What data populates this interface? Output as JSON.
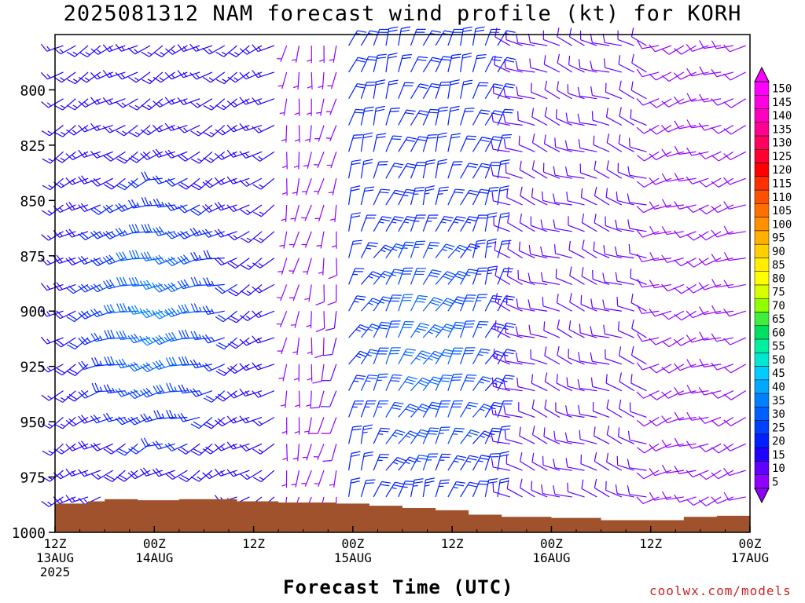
{
  "chart_data": {
    "type": "wind-barb-profile",
    "title": "2025081312 NAM forecast wind profile (kt) for KORH",
    "xlabel": "Forecast Time (UTC)",
    "credit": "coolwx.com/models",
    "y_axis": {
      "ticks": [
        "800",
        "825",
        "850",
        "875",
        "900",
        "925",
        "950",
        "975",
        "1000"
      ],
      "range_hpa": [
        775,
        1000
      ],
      "inverted": true
    },
    "x_axis": {
      "range_hours": [
        0,
        84
      ],
      "ticks": [
        {
          "h": 0,
          "line1": "12Z",
          "line2": "13AUG",
          "line3": "2025"
        },
        {
          "h": 12,
          "line1": "00Z",
          "line2": "14AUG",
          "line3": ""
        },
        {
          "h": 24,
          "line1": "12Z",
          "line2": "",
          "line3": ""
        },
        {
          "h": 36,
          "line1": "00Z",
          "line2": "15AUG",
          "line3": ""
        },
        {
          "h": 48,
          "line1": "12Z",
          "line2": "",
          "line3": ""
        },
        {
          "h": 60,
          "line1": "00Z",
          "line2": "16AUG",
          "line3": ""
        },
        {
          "h": 72,
          "line1": "12Z",
          "line2": "",
          "line3": ""
        },
        {
          "h": 84,
          "line1": "00Z",
          "line2": "17AUG",
          "line3": ""
        }
      ]
    },
    "colorbar": {
      "labels": [
        "150",
        "145",
        "140",
        "135",
        "130",
        "125",
        "120",
        "115",
        "110",
        "105",
        "100",
        "95",
        "90",
        "85",
        "80",
        "75",
        "70",
        "65",
        "60",
        "55",
        "50",
        "45",
        "40",
        "35",
        "30",
        "25",
        "20",
        "15",
        "10",
        "5"
      ],
      "colors": [
        "#ff00ff",
        "#ff00e0",
        "#ff00c0",
        "#ff0090",
        "#ff0060",
        "#ff0030",
        "#ff0000",
        "#ff3000",
        "#ff5000",
        "#ff7000",
        "#ff9000",
        "#ffb000",
        "#ffd000",
        "#ffee00",
        "#ffff00",
        "#d8ff00",
        "#90ff00",
        "#40ee40",
        "#00e060",
        "#00f0a0",
        "#00e8d0",
        "#00ccff",
        "#00a8ff",
        "#0080ff",
        "#0060ff",
        "#0040ff",
        "#0020ff",
        "#2000ff",
        "#6000ff",
        "#9000ff"
      ]
    },
    "terrain_color": "#a0522d",
    "surface_pressure": [
      {
        "h": 0,
        "p": 987
      },
      {
        "h": 4,
        "p": 986
      },
      {
        "h": 6,
        "p": 985
      },
      {
        "h": 10,
        "p": 985.5
      },
      {
        "h": 15,
        "p": 985
      },
      {
        "h": 22,
        "p": 986
      },
      {
        "h": 27,
        "p": 986.5
      },
      {
        "h": 34,
        "p": 987
      },
      {
        "h": 38,
        "p": 988
      },
      {
        "h": 42,
        "p": 989
      },
      {
        "h": 46,
        "p": 990
      },
      {
        "h": 50,
        "p": 992
      },
      {
        "h": 54,
        "p": 993
      },
      {
        "h": 60,
        "p": 993.5
      },
      {
        "h": 66,
        "p": 994.5
      },
      {
        "h": 76,
        "p": 993
      },
      {
        "h": 80,
        "p": 992.5
      },
      {
        "h": 84,
        "p": 992
      }
    ],
    "wind_field": {
      "time_step_h": 1.5,
      "levels_hpa": [
        780,
        792,
        804,
        816,
        828,
        840,
        852,
        864,
        876,
        888,
        900,
        912,
        924,
        936,
        948,
        960,
        972,
        984,
        996
      ],
      "regimes": [
        {
          "h_start": 0,
          "h_end": 27,
          "dir_deg": 240,
          "speed_kt": 15
        },
        {
          "h_start": 27,
          "h_end": 35,
          "dir_deg": 190,
          "speed_kt": 5
        },
        {
          "h_start": 35,
          "h_end": 55,
          "dir_deg": 20,
          "speed_kt": 20
        },
        {
          "h_start": 55,
          "h_end": 72,
          "dir_deg": 290,
          "speed_kt": 10
        },
        {
          "h_start": 72,
          "h_end": 84,
          "dir_deg": 250,
          "speed_kt": 8
        }
      ],
      "jets": [
        {
          "h_center": 13,
          "p_center": 900,
          "dir_deg": 255,
          "speed_kt": 36
        },
        {
          "h_center": 44,
          "p_center": 920,
          "dir_deg": 30,
          "speed_kt": 33
        }
      ]
    }
  }
}
